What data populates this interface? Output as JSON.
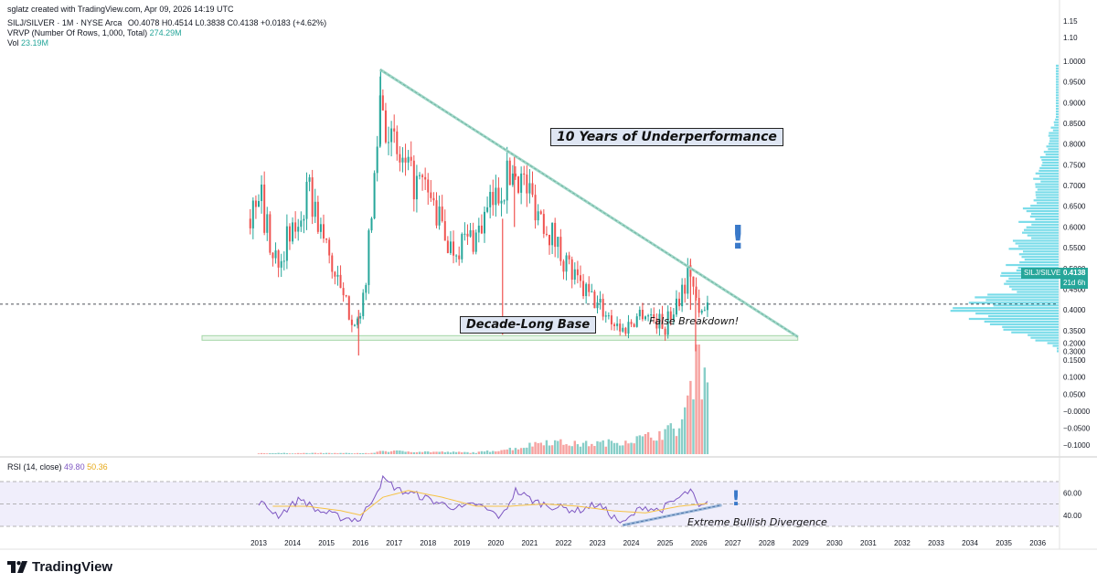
{
  "header": {
    "credit": "sglatz created with TradingView.com, Apr 09, 2026 14:19 UTC",
    "symbol_line": "SILJ/SILVER · 1M · NYSE Arca",
    "ohlc": "O0.4078 H0.4514 L0.3838 C0.4138 +0.0183 (+4.62%)",
    "vrvp_label": "VRVP (Number Of Rows, 1,000, Total)",
    "vrvp_value": "274.29M",
    "vol_label": "Vol",
    "vol_value": "23.19M"
  },
  "price_tag": {
    "symbol": "SILJ/SILVER",
    "price": "0.4138",
    "countdown": "21d 6h"
  },
  "annotations": {
    "underperformance": "10 Years of Underperformance",
    "base": "Decade-Long Base",
    "false_breakdown": "False Breakdown!",
    "divergence": "Extreme Bullish Divergence",
    "exclamation": "!"
  },
  "rsi": {
    "label": "RSI (14, close)",
    "value1": "49.80",
    "value2": "50.36"
  },
  "logo": {
    "text": "TradingView"
  },
  "colors": {
    "up": "#26a69a",
    "down": "#ef5350",
    "vrvp": "#4dd0e1",
    "rsi_line": "#7e57c2",
    "rsi_ma": "#f6c244",
    "trend": "#9fd8c8",
    "support": "#a5d6a7"
  },
  "chart_data": [
    {
      "type": "candlestick",
      "title": "SILJ/SILVER · 1M · NYSE Arca",
      "x_range": [
        "2012-06",
        "2036-12"
      ],
      "ylim": [
        0.29,
        1.15
      ],
      "price_axis_ticks": [
        "1.15",
        "1.10",
        "1.0000",
        "0.9500",
        "0.9000",
        "0.8500",
        "0.8000",
        "0.7500",
        "0.7000",
        "0.6500",
        "0.6000",
        "0.5500",
        "0.5000",
        "0.4500",
        "0.4000",
        "0.3500",
        "0.3000"
      ],
      "secondary_axis_ticks": [
        "0.2000",
        "0.1500",
        "0.1000",
        "0.0500",
        "−0.0000",
        "−0.0500",
        "−0.1000"
      ],
      "x_tick_labels": [
        "2013",
        "2014",
        "2015",
        "2016",
        "2017",
        "2018",
        "2019",
        "2020",
        "2021",
        "2022",
        "2023",
        "2024",
        "2025",
        "2026",
        "2027",
        "2028",
        "2029",
        "2030",
        "2031",
        "2032",
        "2033",
        "2034",
        "2035",
        "2036"
      ],
      "approx_close_path": [
        {
          "date": "2012-10",
          "close": 0.62
        },
        {
          "date": "2013-01",
          "close": 0.7
        },
        {
          "date": "2013-06",
          "close": 0.52
        },
        {
          "date": "2014-01",
          "close": 0.58
        },
        {
          "date": "2014-07",
          "close": 0.68
        },
        {
          "date": "2015-01",
          "close": 0.55
        },
        {
          "date": "2015-07",
          "close": 0.42
        },
        {
          "date": "2016-01",
          "close": 0.36
        },
        {
          "date": "2016-05",
          "close": 0.62
        },
        {
          "date": "2016-08",
          "close": 0.92
        },
        {
          "date": "2017-01",
          "close": 0.78
        },
        {
          "date": "2017-06",
          "close": 0.72
        },
        {
          "date": "2018-01",
          "close": 0.68
        },
        {
          "date": "2018-09",
          "close": 0.55
        },
        {
          "date": "2019-06",
          "close": 0.58
        },
        {
          "date": "2020-03",
          "close": 0.7
        },
        {
          "date": "2020-08",
          "close": 0.74
        },
        {
          "date": "2021-06",
          "close": 0.62
        },
        {
          "date": "2022-06",
          "close": 0.46
        },
        {
          "date": "2023-03",
          "close": 0.4
        },
        {
          "date": "2023-10",
          "close": 0.35
        },
        {
          "date": "2024-05",
          "close": 0.4
        },
        {
          "date": "2025-01",
          "close": 0.36
        },
        {
          "date": "2025-10",
          "close": 0.5
        },
        {
          "date": "2026-01",
          "close": 0.38
        },
        {
          "date": "2026-04",
          "close": 0.4138
        }
      ],
      "key_levels": {
        "wick_high_2016": 0.98,
        "wick_low_2016": 0.29,
        "wick_low_2020": 0.34,
        "support": 0.335,
        "current": 0.4138,
        "false_breakdown_low": 0.3
      },
      "trendline": {
        "from": {
          "date": "2016-08",
          "value": 0.98
        },
        "to": {
          "date": "2028-12",
          "value": 0.335
        }
      },
      "support_zone": {
        "from": "2014-01",
        "to": "2028-12",
        "low": 0.33,
        "high": 0.34
      }
    },
    {
      "type": "bar",
      "title": "Vol",
      "approx_values_m": [
        {
          "date": "2016-06",
          "value": 1.0
        },
        {
          "date": "2019-06",
          "value": 0.5
        },
        {
          "date": "2020-10",
          "value": 2.0
        },
        {
          "date": "2021-06",
          "value": 4.0
        },
        {
          "date": "2022-06",
          "value": 3.0
        },
        {
          "date": "2023-06",
          "value": 3.5
        },
        {
          "date": "2024-06",
          "value": 5.0
        },
        {
          "date": "2025-06",
          "value": 8.0
        },
        {
          "date": "2025-10",
          "value": 18.0
        },
        {
          "date": "2025-12",
          "value": 30.0
        },
        {
          "date": "2026-02",
          "value": 24.0
        },
        {
          "date": "2026-04",
          "value": 23.19
        }
      ]
    },
    {
      "type": "line",
      "title": "RSI (14, close)",
      "ylim": [
        30,
        75
      ],
      "y_ticks": [
        "60.00",
        "40.00"
      ],
      "bands": [
        30,
        50,
        70
      ],
      "series": [
        {
          "name": "RSI",
          "points": [
            {
              "date": "2013-01",
              "value": 52
            },
            {
              "date": "2013-08",
              "value": 40
            },
            {
              "date": "2014-04",
              "value": 55
            },
            {
              "date": "2014-09",
              "value": 45
            },
            {
              "date": "2015-06",
              "value": 38
            },
            {
              "date": "2016-01",
              "value": 36
            },
            {
              "date": "2016-06",
              "value": 58
            },
            {
              "date": "2016-09",
              "value": 72
            },
            {
              "date": "2017-03",
              "value": 62
            },
            {
              "date": "2017-09",
              "value": 58
            },
            {
              "date": "2018-06",
              "value": 50
            },
            {
              "date": "2019-01",
              "value": 46
            },
            {
              "date": "2019-06",
              "value": 50
            },
            {
              "date": "2020-03",
              "value": 38
            },
            {
              "date": "2020-08",
              "value": 62
            },
            {
              "date": "2021-03",
              "value": 52
            },
            {
              "date": "2021-09",
              "value": 48
            },
            {
              "date": "2022-06",
              "value": 44
            },
            {
              "date": "2023-01",
              "value": 50
            },
            {
              "date": "2023-10",
              "value": 32
            },
            {
              "date": "2024-05",
              "value": 48
            },
            {
              "date": "2024-11",
              "value": 44
            },
            {
              "date": "2025-10",
              "value": 62
            },
            {
              "date": "2026-01",
              "value": 46
            },
            {
              "date": "2026-04",
              "value": 49.8
            }
          ]
        },
        {
          "name": "RSI MA",
          "points": [
            {
              "date": "2013-06",
              "value": 48
            },
            {
              "date": "2014-06",
              "value": 48
            },
            {
              "date": "2015-06",
              "value": 44
            },
            {
              "date": "2016-01",
              "value": 40
            },
            {
              "date": "2016-09",
              "value": 56
            },
            {
              "date": "2017-06",
              "value": 62
            },
            {
              "date": "2018-06",
              "value": 56
            },
            {
              "date": "2019-06",
              "value": 48
            },
            {
              "date": "2020-06",
              "value": 48
            },
            {
              "date": "2021-06",
              "value": 50
            },
            {
              "date": "2022-06",
              "value": 48
            },
            {
              "date": "2023-06",
              "value": 44
            },
            {
              "date": "2024-06",
              "value": 42
            },
            {
              "date": "2025-06",
              "value": 48
            },
            {
              "date": "2026-04",
              "value": 50.36
            }
          ]
        }
      ],
      "divergence_line": {
        "from": {
          "date": "2023-10",
          "value": 31
        },
        "to": {
          "date": "2026-09",
          "value": 49
        }
      }
    }
  ]
}
